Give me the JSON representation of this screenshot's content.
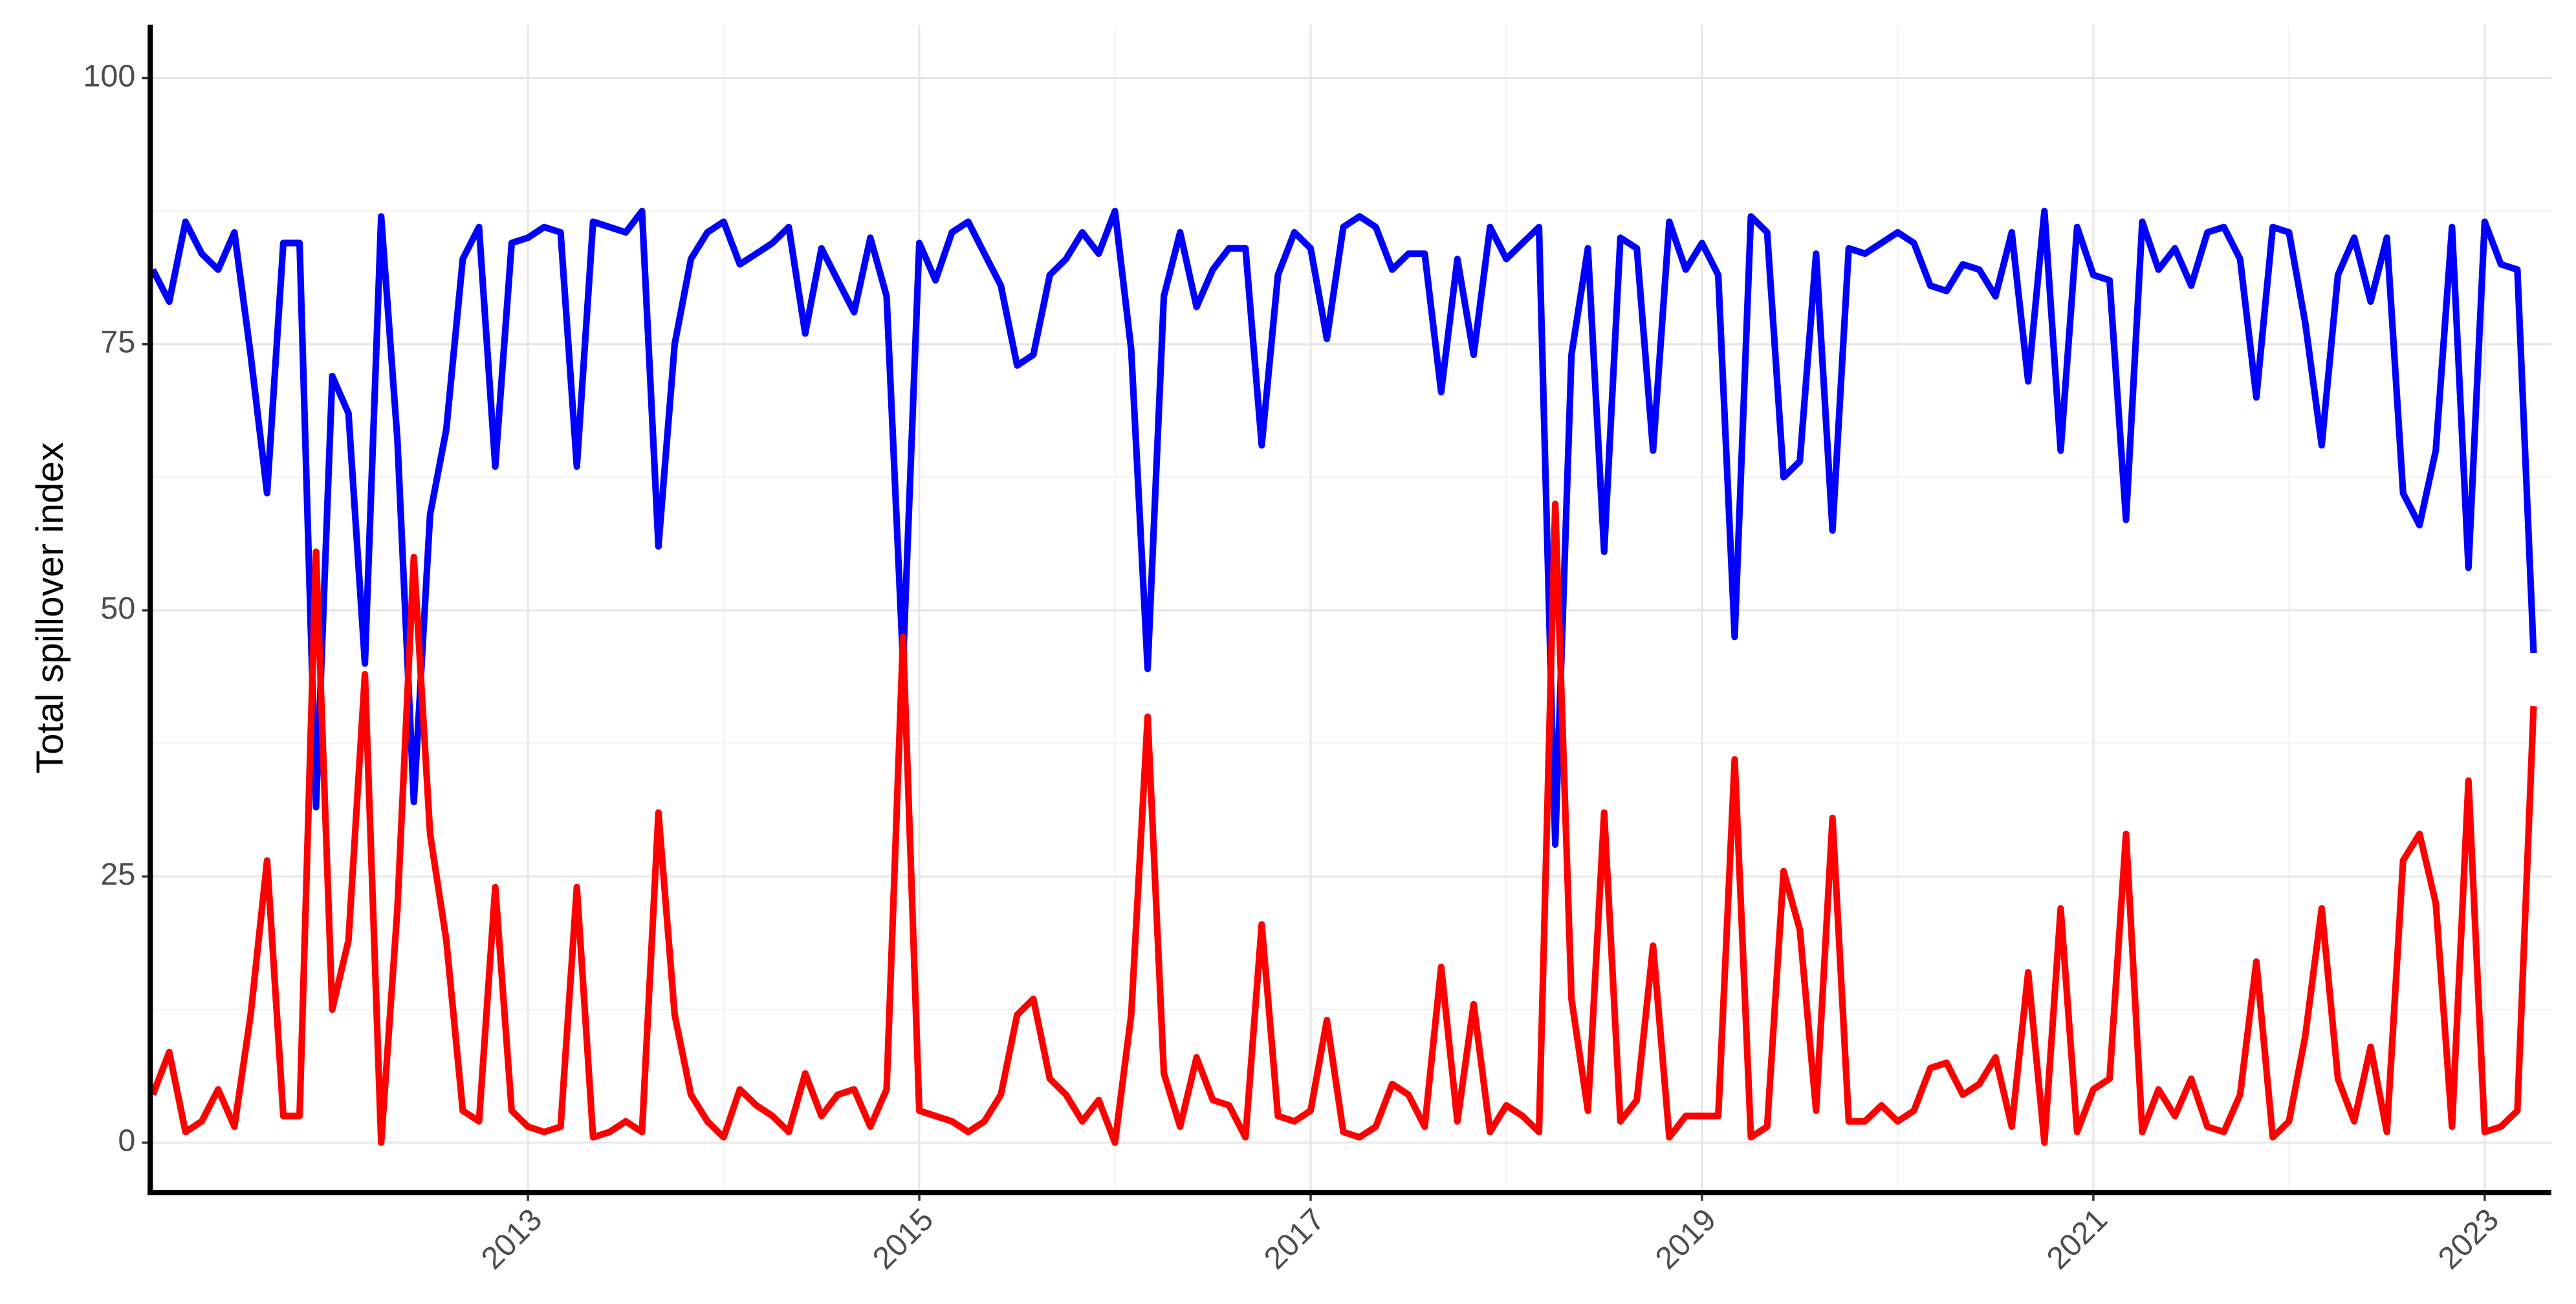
{
  "chart_data": {
    "type": "line",
    "ylabel": "Total spillover index",
    "xlim": [
      2011.07,
      2023.34
    ],
    "xticks": [
      2013,
      2015,
      2017,
      2019,
      2021,
      2023
    ],
    "ylim": [
      -4.7,
      105
    ],
    "yticks": [
      0,
      25,
      50,
      75,
      100
    ],
    "grid": true,
    "x": [
      2011.083,
      2011.167,
      2011.25,
      2011.333,
      2011.417,
      2011.5,
      2011.583,
      2011.667,
      2011.75,
      2011.833,
      2011.917,
      2012,
      2012.083,
      2012.167,
      2012.25,
      2012.333,
      2012.417,
      2012.5,
      2012.583,
      2012.667,
      2012.75,
      2012.833,
      2012.917,
      2013,
      2013.083,
      2013.167,
      2013.25,
      2013.333,
      2013.417,
      2013.5,
      2013.583,
      2013.667,
      2013.75,
      2013.833,
      2013.917,
      2014,
      2014.083,
      2014.167,
      2014.25,
      2014.333,
      2014.417,
      2014.5,
      2014.583,
      2014.667,
      2014.75,
      2014.833,
      2014.917,
      2015,
      2015.083,
      2015.167,
      2015.25,
      2015.333,
      2015.417,
      2015.5,
      2015.583,
      2015.667,
      2015.75,
      2015.833,
      2015.917,
      2016,
      2016.083,
      2016.167,
      2016.25,
      2016.333,
      2016.417,
      2016.5,
      2016.583,
      2016.667,
      2016.75,
      2016.833,
      2016.917,
      2017,
      2017.083,
      2017.167,
      2017.25,
      2017.333,
      2017.417,
      2017.5,
      2017.583,
      2017.667,
      2017.75,
      2017.833,
      2017.917,
      2018,
      2018.083,
      2018.167,
      2018.25,
      2018.333,
      2018.417,
      2018.5,
      2018.583,
      2018.667,
      2018.75,
      2018.833,
      2018.917,
      2019,
      2019.083,
      2019.167,
      2019.25,
      2019.333,
      2019.417,
      2019.5,
      2019.583,
      2019.667,
      2019.75,
      2019.833,
      2019.917,
      2020,
      2020.083,
      2020.167,
      2020.25,
      2020.333,
      2020.417,
      2020.5,
      2020.583,
      2020.667,
      2020.75,
      2020.833,
      2020.917,
      2021,
      2021.083,
      2021.167,
      2021.25,
      2021.333,
      2021.417,
      2021.5,
      2021.583,
      2021.667,
      2021.75,
      2021.833,
      2021.917,
      2022,
      2022.083,
      2022.167,
      2022.25,
      2022.333,
      2022.417,
      2022.5,
      2022.583,
      2022.667,
      2022.75,
      2022.833,
      2022.917,
      2023,
      2023.083,
      2023.167,
      2023.25
    ],
    "series": [
      {
        "color": "#0000ff",
        "values": [
          82,
          79,
          86.5,
          83.5,
          82,
          85.5,
          74,
          61,
          84.5,
          84.5,
          31.5,
          72,
          68.5,
          45,
          87,
          66,
          32,
          59,
          67,
          83,
          86,
          63.5,
          84.5,
          85,
          86,
          85.5,
          63.5,
          86.5,
          86,
          85.5,
          87.5,
          56,
          75,
          83,
          85.5,
          86.5,
          82.5,
          83.5,
          84.5,
          86,
          76,
          84,
          81,
          78,
          85,
          79.5,
          45,
          84.5,
          81,
          85.5,
          86.5,
          83.5,
          80.5,
          73,
          74,
          81.5,
          83,
          85.5,
          83.5,
          87.5,
          74.5,
          44.5,
          79.5,
          85.5,
          78.5,
          82,
          84,
          84,
          65.5,
          81.5,
          85.5,
          84,
          75.5,
          86,
          87,
          86,
          82,
          83.5,
          83.5,
          70.5,
          83,
          74,
          86,
          83,
          84.5,
          86,
          28,
          74,
          84,
          55.5,
          85,
          84,
          65,
          86.5,
          82,
          84.5,
          81.5,
          47.5,
          87,
          85.5,
          62.5,
          64,
          83.5,
          57.5,
          84,
          83.5,
          84.5,
          85.5,
          84.5,
          80.5,
          80,
          82.5,
          82,
          79.5,
          85.5,
          71.5,
          87.5,
          65,
          86,
          81.5,
          81,
          58.5,
          86.5,
          82,
          84,
          80.5,
          85.5,
          86,
          83,
          70,
          86,
          85.5,
          77,
          65.5,
          81.5,
          85,
          79,
          85,
          61,
          58,
          65,
          86,
          54,
          86.5,
          82.5,
          82,
          46
        ]
      },
      {
        "color": "#ff0000",
        "values": [
          4.5,
          8.5,
          1,
          2,
          5,
          1.5,
          12,
          26.5,
          2.5,
          2.5,
          55.5,
          12.5,
          19,
          44,
          0,
          22,
          55,
          29,
          19,
          3,
          2,
          24,
          3,
          1.5,
          1,
          1.5,
          24,
          0.5,
          1,
          2,
          1,
          31,
          12,
          4.5,
          2,
          0.5,
          5,
          3.5,
          2.5,
          1,
          6.5,
          2.5,
          4.5,
          5,
          1.5,
          5,
          47.5,
          3,
          2.5,
          2,
          1,
          2,
          4.5,
          12,
          13.5,
          6,
          4.5,
          2,
          4,
          0,
          12,
          40,
          6.5,
          1.5,
          8,
          4,
          3.5,
          0.5,
          20.5,
          2.5,
          2,
          3,
          11.5,
          1,
          0.5,
          1.5,
          5.5,
          4.5,
          1.5,
          16.5,
          2,
          13,
          1,
          3.5,
          2.5,
          1,
          60,
          13.5,
          3,
          31,
          2,
          4,
          18.5,
          0.5,
          2.5,
          2.5,
          2.5,
          36,
          0.5,
          1.5,
          25.5,
          20,
          3,
          30.5,
          2,
          2,
          3.5,
          2,
          3,
          7,
          7.5,
          4.5,
          5.5,
          8,
          1.5,
          16,
          0,
          22,
          1,
          5,
          6,
          29,
          1,
          5,
          2.5,
          6,
          1.5,
          1,
          4.5,
          17,
          0.5,
          2,
          10,
          22,
          6,
          2,
          9,
          1,
          26.5,
          29,
          22.5,
          1.5,
          34,
          1,
          1.5,
          3,
          41
        ]
      }
    ]
  }
}
